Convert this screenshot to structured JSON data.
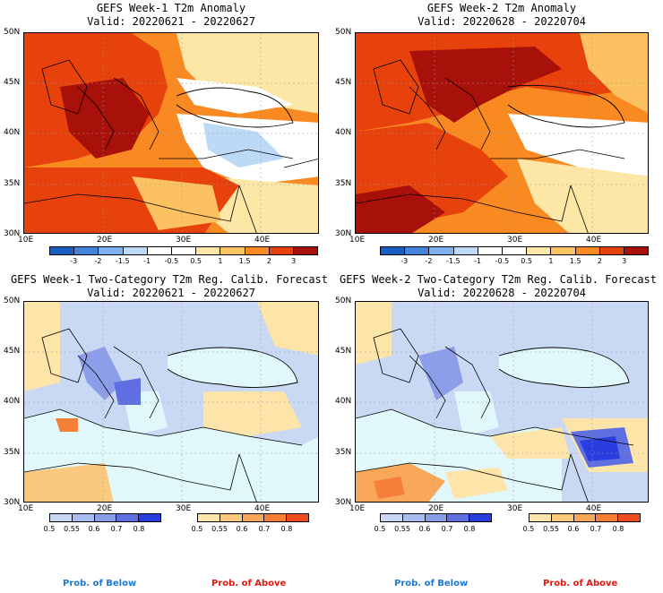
{
  "panels": [
    {
      "title1": "GEFS Week-1 T2m Anomaly",
      "title2": "Valid: 20220621 - 20220627"
    },
    {
      "title1": "GEFS Week-2 T2m Anomaly",
      "title2": "Valid: 20220628 - 20220704"
    },
    {
      "title1": "GEFS Week-1 Two-Category T2m Reg. Calib. Forecast",
      "title2": "Valid: 20220621 - 20220627"
    },
    {
      "title1": "GEFS Week-2 Two-Category T2m Reg. Calib. Forecast",
      "title2": "Valid: 20220628 - 20220704"
    }
  ],
  "lat_labels": [
    "50N",
    "45N",
    "40N",
    "35N",
    "30N"
  ],
  "lon_labels": [
    "10E",
    "20E",
    "30E",
    "40E"
  ],
  "anomaly_colorbar": {
    "labels": [
      "-3",
      "-2",
      "-1.5",
      "-1",
      "-0.5",
      "0.5",
      "1",
      "1.5",
      "2",
      "3"
    ],
    "colors": [
      "#1a5fc4",
      "#3f86dc",
      "#7fb2ec",
      "#bcd9f6",
      "#ffffff",
      "#ffffff",
      "#fde7a6",
      "#fcc160",
      "#f98a22",
      "#e8420c",
      "#a8100a"
    ]
  },
  "prob_colorbar": {
    "below_labels": [
      "0.5",
      "0.55",
      "0.6",
      "0.7",
      "0.8"
    ],
    "above_labels": [
      "0.5",
      "0.55",
      "0.6",
      "0.7",
      "0.8"
    ],
    "below_colors": [
      "#c9d9f4",
      "#aabdf0",
      "#8c9ee9",
      "#5f6fe2",
      "#2a3ee0"
    ],
    "above_colors": [
      "#fde4a8",
      "#fbc97e",
      "#f9a85a",
      "#f6803a",
      "#ef4c1e"
    ]
  },
  "legend": {
    "below": "Prob. of Below",
    "above": "Prob. of Above"
  },
  "colors": {
    "sea_prob": "#e0f7fb",
    "coast": "#000000"
  }
}
